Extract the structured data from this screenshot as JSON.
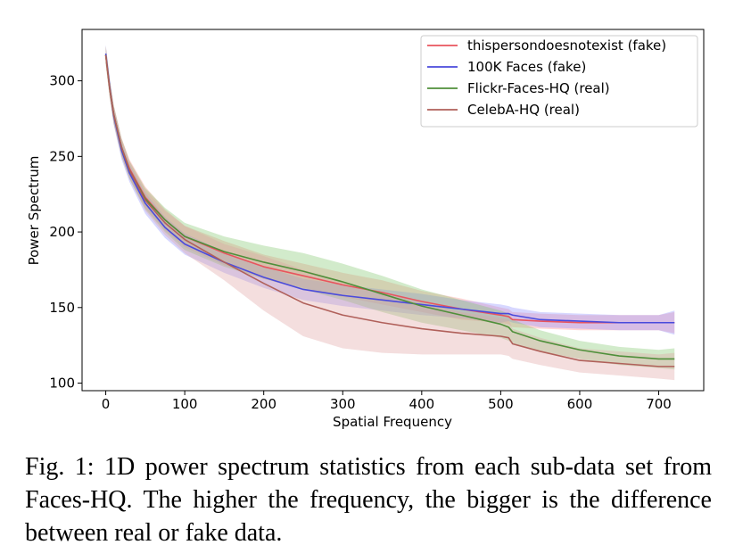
{
  "chart_data": {
    "type": "line",
    "title": "",
    "xlabel": "Spatial Frequency",
    "ylabel": "Power Spectrum",
    "xlim": [
      -30,
      757
    ],
    "ylim": [
      95,
      334
    ],
    "x_ticks": [
      0,
      100,
      200,
      300,
      400,
      500,
      600,
      700
    ],
    "y_ticks": [
      100,
      150,
      200,
      250,
      300
    ],
    "grid": false,
    "legend_position": "top-right",
    "series": [
      {
        "name": "thispersondoesnotexist (fake)",
        "color": "#e8545e",
        "band_color": "#ff8c8c",
        "x": [
          0,
          5,
          10,
          20,
          30,
          50,
          75,
          100,
          150,
          200,
          250,
          300,
          350,
          400,
          450,
          500,
          510,
          515,
          550,
          600,
          650,
          700,
          720
        ],
        "y": [
          317,
          295,
          278,
          256,
          242,
          223,
          208,
          197,
          186,
          177,
          171,
          165,
          160,
          154,
          149,
          145,
          144,
          142,
          141,
          140,
          140,
          140,
          140
        ],
        "band": [
          6,
          6,
          6,
          6,
          6,
          7,
          7,
          7,
          8,
          8,
          8,
          8,
          8,
          7,
          7,
          5,
          5,
          5,
          5,
          5,
          5,
          5,
          7
        ]
      },
      {
        "name": "100K Faces (fake)",
        "color": "#4a4adc",
        "band_color": "#8c8cff",
        "x": [
          0,
          5,
          10,
          20,
          30,
          50,
          75,
          100,
          150,
          200,
          250,
          300,
          350,
          400,
          450,
          500,
          510,
          515,
          550,
          600,
          650,
          700,
          720
        ],
        "y": [
          318,
          296,
          277,
          254,
          239,
          219,
          203,
          192,
          180,
          170,
          162,
          158,
          155,
          152,
          149,
          146,
          146,
          145,
          142,
          141,
          140,
          140,
          140
        ],
        "band": [
          6,
          6,
          6,
          6,
          6,
          7,
          7,
          7,
          7,
          7,
          7,
          7,
          7,
          7,
          6,
          6,
          5,
          5,
          5,
          5,
          5,
          5,
          8
        ]
      },
      {
        "name": "Flickr-Faces-HQ (real)",
        "color": "#4f8f3a",
        "band_color": "#7fc66a",
        "x": [
          0,
          5,
          10,
          20,
          30,
          50,
          75,
          100,
          150,
          200,
          250,
          300,
          350,
          400,
          450,
          500,
          510,
          515,
          550,
          600,
          650,
          700,
          720
        ],
        "y": [
          317,
          295,
          278,
          256,
          241,
          222,
          208,
          197,
          187,
          180,
          174,
          167,
          159,
          151,
          145,
          139,
          137,
          134,
          128,
          122,
          118,
          116,
          116
        ],
        "band": [
          6,
          6,
          6,
          6,
          6,
          7,
          8,
          9,
          10,
          11,
          12,
          12,
          12,
          11,
          10,
          9,
          9,
          8,
          7,
          6,
          6,
          6,
          7
        ]
      },
      {
        "name": "CelebA-HQ (real)",
        "color": "#b0605a",
        "band_color": "#e0a0a0",
        "x": [
          0,
          5,
          10,
          20,
          30,
          50,
          75,
          100,
          150,
          200,
          250,
          300,
          350,
          400,
          450,
          500,
          510,
          515,
          550,
          600,
          650,
          700,
          720
        ],
        "y": [
          317,
          295,
          278,
          256,
          241,
          221,
          206,
          195,
          180,
          166,
          153,
          145,
          140,
          136,
          133,
          131,
          130,
          126,
          121,
          115,
          113,
          111,
          111
        ],
        "band": [
          6,
          6,
          6,
          6,
          6,
          7,
          8,
          9,
          12,
          18,
          22,
          22,
          20,
          17,
          14,
          12,
          12,
          10,
          9,
          8,
          8,
          8,
          9
        ]
      }
    ]
  },
  "caption": {
    "text": "Fig. 1: 1D power spectrum statistics from each sub-data set from Faces-HQ. The higher the frequency, the bigger is the difference between real or fake data."
  }
}
